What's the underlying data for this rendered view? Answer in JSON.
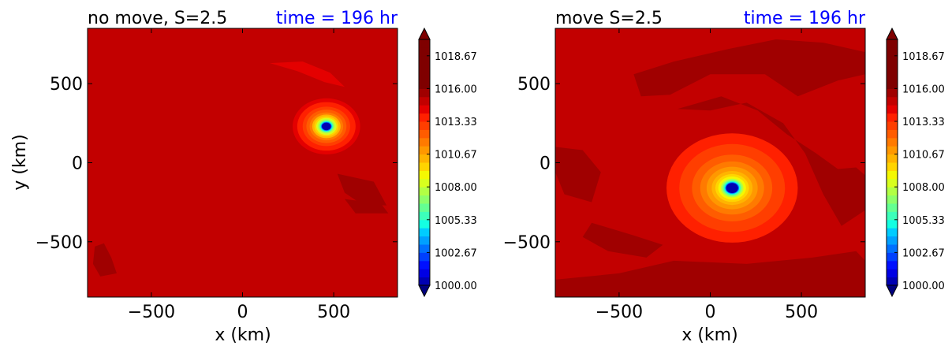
{
  "colorbar": {
    "levels": [
      1000.0,
      1000.667,
      1001.333,
      1002.0,
      1002.667,
      1003.333,
      1004.0,
      1004.667,
      1005.333,
      1006.0,
      1006.667,
      1007.333,
      1008.0,
      1008.667,
      1009.333,
      1010.0,
      1010.667,
      1011.333,
      1012.0,
      1012.667,
      1013.333,
      1014.0,
      1014.667,
      1015.333,
      1016.0,
      1016.667,
      1017.333,
      1018.0,
      1018.667,
      1019.333,
      1020.0
    ],
    "tick_labels": [
      "1000.00",
      "1002.67",
      "1005.33",
      "1008.00",
      "1010.67",
      "1013.33",
      "1016.00",
      "1018.67"
    ],
    "tick_values": [
      1000.0,
      1002.667,
      1005.333,
      1008.0,
      1010.667,
      1013.333,
      1016.0,
      1018.667
    ],
    "colors": [
      "#00007f",
      "#0000b2",
      "#0000e4",
      "#0010ff",
      "#0040ff",
      "#0070ff",
      "#00a0ff",
      "#00ccff",
      "#14ffe2",
      "#3cffba",
      "#64ff92",
      "#8cff6a",
      "#b2ff44",
      "#d8ff1e",
      "#f4f802",
      "#ffd400",
      "#ffb400",
      "#ff9800",
      "#ff7a00",
      "#ff5c00",
      "#ff3e00",
      "#ff2000",
      "#e40000",
      "#c20000",
      "#a00000",
      "#7f0000"
    ]
  },
  "chart_data": [
    {
      "type": "contourf",
      "title_left": "no move, S=2.5",
      "title_right": "time = 196 hr",
      "xlabel": "x (km)",
      "ylabel": "y (km)",
      "xlim": [
        -850,
        850
      ],
      "ylim": [
        -850,
        850
      ],
      "xticks": [
        -500,
        0,
        500
      ],
      "xtick_labels": [
        "−500",
        "0",
        "500"
      ],
      "yticks": [
        -500,
        0,
        500
      ],
      "ytick_labels": [
        "−500",
        "0",
        "500"
      ],
      "background_value": 1015.2,
      "center": [
        460,
        230
      ],
      "rings": [
        {
          "r": 185,
          "value": 1014.0
        },
        {
          "r": 160,
          "value": 1013.5
        },
        {
          "r": 130,
          "value": 1013.0
        },
        {
          "r": 110,
          "value": 1012.3
        },
        {
          "r": 92,
          "value": 1011.5
        },
        {
          "r": 78,
          "value": 1010.5
        },
        {
          "r": 66,
          "value": 1009.5
        },
        {
          "r": 56,
          "value": 1008.5
        },
        {
          "r": 47,
          "value": 1007.5
        },
        {
          "r": 40,
          "value": 1006.5
        },
        {
          "r": 34,
          "value": 1005.0
        },
        {
          "r": 29,
          "value": 1003.0
        },
        {
          "r": 25,
          "value": 1000.2
        }
      ],
      "patches": [
        {
          "value": 1014.0,
          "pts": [
            [
              150,
              630
            ],
            [
              330,
              640
            ],
            [
              480,
              570
            ],
            [
              560,
              480
            ],
            [
              450,
              510
            ],
            [
              300,
              580
            ]
          ]
        },
        {
          "value": 1015.8,
          "pts": [
            [
              520,
              -70
            ],
            [
              720,
              -120
            ],
            [
              790,
              -270
            ],
            [
              650,
              -260
            ],
            [
              560,
              -190
            ]
          ]
        },
        {
          "value": 1015.8,
          "pts": [
            [
              -810,
              -530
            ],
            [
              -760,
              -510
            ],
            [
              -720,
              -600
            ],
            [
              -690,
              -700
            ],
            [
              -780,
              -720
            ],
            [
              -820,
              -640
            ]
          ]
        },
        {
          "value": 1015.8,
          "pts": [
            [
              560,
              -230
            ],
            [
              760,
              -260
            ],
            [
              800,
              -320
            ],
            [
              620,
              -320
            ]
          ]
        }
      ]
    },
    {
      "type": "contourf",
      "title_left": "move S=2.5",
      "title_right": "time = 196 hr",
      "xlabel": "x (km)",
      "ylabel": "",
      "xlim": [
        -850,
        850
      ],
      "ylim": [
        -850,
        850
      ],
      "xticks": [
        -500,
        0,
        500
      ],
      "xtick_labels": [
        "−500",
        "0",
        "500"
      ],
      "yticks": [
        -500,
        0,
        500
      ],
      "ytick_labels": [
        "−500",
        "0",
        "500"
      ],
      "background_value": 1015.2,
      "center": [
        120,
        -160
      ],
      "rings": [
        {
          "r": 360,
          "value": 1013.8
        },
        {
          "r": 290,
          "value": 1013.0
        },
        {
          "r": 220,
          "value": 1012.3
        },
        {
          "r": 175,
          "value": 1011.6
        },
        {
          "r": 140,
          "value": 1011.0
        },
        {
          "r": 112,
          "value": 1010.3
        },
        {
          "r": 92,
          "value": 1009.5
        },
        {
          "r": 76,
          "value": 1008.7
        },
        {
          "r": 62,
          "value": 1007.8
        },
        {
          "r": 52,
          "value": 1006.5
        },
        {
          "r": 44,
          "value": 1005.0
        },
        {
          "r": 38,
          "value": 1003.0
        },
        {
          "r": 33,
          "value": 1000.2
        }
      ],
      "patches": [
        {
          "value": 1015.8,
          "pts": [
            [
              -420,
              560
            ],
            [
              -200,
              640
            ],
            [
              100,
              720
            ],
            [
              360,
              780
            ],
            [
              620,
              760
            ],
            [
              850,
              700
            ],
            [
              850,
              560
            ],
            [
              700,
              520
            ],
            [
              480,
              420
            ],
            [
              300,
              560
            ],
            [
              0,
              560
            ],
            [
              -220,
              430
            ],
            [
              -380,
              420
            ]
          ]
        },
        {
          "value": 1015.8,
          "pts": [
            [
              -180,
              340
            ],
            [
              60,
              420
            ],
            [
              260,
              330
            ],
            [
              420,
              180
            ],
            [
              580,
              60
            ],
            [
              700,
              -40
            ],
            [
              800,
              -30
            ],
            [
              850,
              -80
            ],
            [
              850,
              -300
            ],
            [
              720,
              -400
            ],
            [
              620,
              -200
            ],
            [
              520,
              60
            ],
            [
              400,
              250
            ],
            [
              200,
              380
            ],
            [
              0,
              330
            ]
          ]
        },
        {
          "value": 1015.8,
          "pts": [
            [
              -850,
              -740
            ],
            [
              -500,
              -700
            ],
            [
              -200,
              -620
            ],
            [
              200,
              -640
            ],
            [
              560,
              -600
            ],
            [
              800,
              -560
            ],
            [
              850,
              -620
            ],
            [
              850,
              -850
            ],
            [
              -850,
              -850
            ]
          ]
        },
        {
          "value": 1015.8,
          "pts": [
            [
              -650,
              -380
            ],
            [
              -420,
              -460
            ],
            [
              -260,
              -520
            ],
            [
              -350,
              -600
            ],
            [
              -560,
              -560
            ],
            [
              -700,
              -470
            ]
          ]
        },
        {
          "value": 1015.8,
          "pts": [
            [
              -850,
              100
            ],
            [
              -700,
              80
            ],
            [
              -600,
              -60
            ],
            [
              -650,
              -250
            ],
            [
              -800,
              -200
            ],
            [
              -850,
              -60
            ]
          ]
        }
      ]
    }
  ]
}
